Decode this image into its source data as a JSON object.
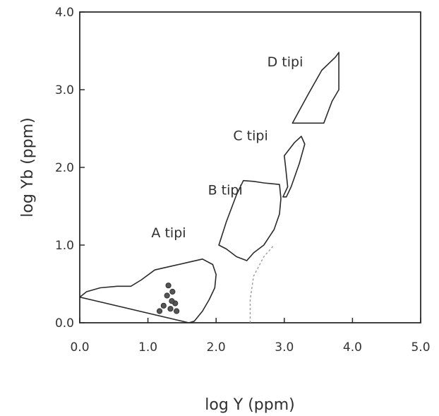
{
  "chart_data": {
    "type": "scatter",
    "xlabel": "log Y (ppm)",
    "ylabel": "log Yb (ppm)",
    "xlim": [
      0,
      5
    ],
    "ylim": [
      0,
      4
    ],
    "x_ticks": [
      "0.0",
      "1.0",
      "2.0",
      "3.0",
      "4.0",
      "5.0"
    ],
    "y_ticks": [
      "0.0",
      "1.0",
      "2.0",
      "3.0",
      "4.0"
    ],
    "regions": [
      {
        "label": "A tipi",
        "label_at": [
          1.05,
          1.1
        ],
        "polygon": [
          [
            0.0,
            0.33
          ],
          [
            0.1,
            0.4
          ],
          [
            0.3,
            0.45
          ],
          [
            0.55,
            0.47
          ],
          [
            0.75,
            0.47
          ],
          [
            0.9,
            0.55
          ],
          [
            1.1,
            0.68
          ],
          [
            1.35,
            0.73
          ],
          [
            1.6,
            0.78
          ],
          [
            1.8,
            0.82
          ],
          [
            1.95,
            0.75
          ],
          [
            2.0,
            0.62
          ],
          [
            1.98,
            0.45
          ],
          [
            1.9,
            0.3
          ],
          [
            1.8,
            0.15
          ],
          [
            1.68,
            0.02
          ],
          [
            1.6,
            0.0
          ]
        ]
      },
      {
        "label": "B tipi",
        "label_at": [
          1.88,
          1.65
        ],
        "polygon": [
          [
            2.04,
            1.0
          ],
          [
            2.15,
            1.3
          ],
          [
            2.3,
            1.65
          ],
          [
            2.4,
            1.83
          ],
          [
            2.55,
            1.82
          ],
          [
            2.7,
            1.8
          ],
          [
            2.93,
            1.78
          ],
          [
            2.95,
            1.6
          ],
          [
            2.93,
            1.4
          ],
          [
            2.85,
            1.2
          ],
          [
            2.7,
            1.0
          ],
          [
            2.55,
            0.9
          ],
          [
            2.45,
            0.8
          ],
          [
            2.3,
            0.85
          ],
          [
            2.15,
            0.95
          ]
        ]
      },
      {
        "label": "C tipi",
        "label_at": [
          2.25,
          2.35
        ],
        "polygon": [
          [
            2.98,
            1.62
          ],
          [
            3.05,
            1.75
          ],
          [
            3.02,
            2.0
          ],
          [
            3.0,
            2.15
          ],
          [
            3.15,
            2.32
          ],
          [
            3.25,
            2.4
          ],
          [
            3.3,
            2.3
          ],
          [
            3.22,
            2.05
          ],
          [
            3.1,
            1.75
          ],
          [
            3.03,
            1.62
          ]
        ]
      },
      {
        "label": "D tipi",
        "label_at": [
          2.75,
          3.3
        ],
        "polygon": [
          [
            3.12,
            2.57
          ],
          [
            3.35,
            2.94
          ],
          [
            3.55,
            3.25
          ],
          [
            3.75,
            3.42
          ],
          [
            3.8,
            3.48
          ],
          [
            3.8,
            3.0
          ],
          [
            3.7,
            2.85
          ],
          [
            3.58,
            2.57
          ]
        ]
      }
    ],
    "trend_line": [
      [
        2.5,
        0.0
      ],
      [
        2.5,
        0.3
      ],
      [
        2.55,
        0.6
      ],
      [
        2.7,
        0.85
      ],
      [
        2.85,
        1.0
      ]
    ],
    "points": [
      [
        1.17,
        0.15
      ],
      [
        1.23,
        0.22
      ],
      [
        1.28,
        0.35
      ],
      [
        1.3,
        0.48
      ],
      [
        1.36,
        0.4
      ],
      [
        1.4,
        0.25
      ],
      [
        1.33,
        0.18
      ],
      [
        1.35,
        0.28
      ],
      [
        1.42,
        0.15
      ]
    ],
    "grid": false,
    "legend": "none"
  }
}
